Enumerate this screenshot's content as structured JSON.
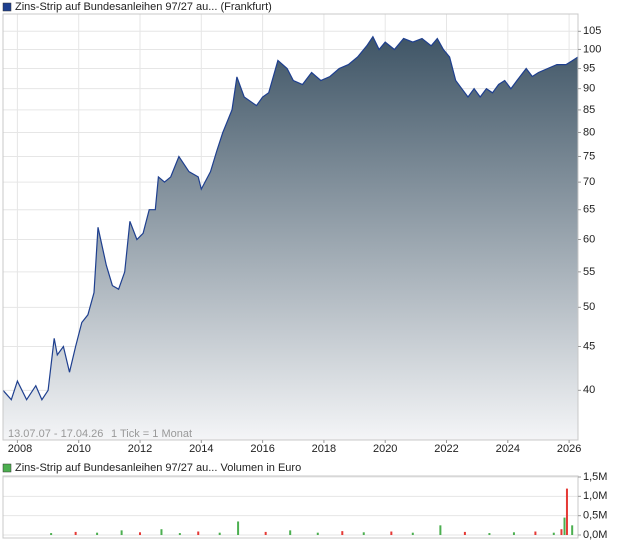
{
  "chart_data": [
    {
      "type": "area",
      "date_range": "13.07.07 - 17.04.26",
      "tick_note": "1 Tick = 1 Monat",
      "x": [
        2007.53,
        2007.8,
        2008.0,
        2008.3,
        2008.6,
        2008.8,
        2009.0,
        2009.2,
        2009.3,
        2009.5,
        2009.7,
        2009.9,
        2010.1,
        2010.3,
        2010.5,
        2010.63,
        2010.9,
        2011.1,
        2011.3,
        2011.5,
        2011.67,
        2011.9,
        2012.1,
        2012.3,
        2012.5,
        2012.6,
        2012.8,
        2013.0,
        2013.27,
        2013.6,
        2013.9,
        2014.0,
        2014.3,
        2014.5,
        2014.7,
        2015.0,
        2015.16,
        2015.4,
        2015.8,
        2016.0,
        2016.2,
        2016.5,
        2016.8,
        2017.0,
        2017.3,
        2017.6,
        2017.9,
        2018.2,
        2018.5,
        2018.8,
        2019.1,
        2019.4,
        2019.6,
        2019.8,
        2020.0,
        2020.3,
        2020.6,
        2020.9,
        2021.2,
        2021.5,
        2021.7,
        2021.9,
        2022.1,
        2022.3,
        2022.5,
        2022.7,
        2022.9,
        2023.1,
        2023.3,
        2023.5,
        2023.7,
        2023.9,
        2024.1,
        2024.3,
        2024.6,
        2024.8,
        2025.0,
        2025.3,
        2025.6,
        2025.9,
        2026.1,
        2026.29
      ],
      "series": [
        {
          "name": "Zins-Strip auf Bundesanleihen 97/27 au... (Frankfurt)",
          "color": "#1e3f8f",
          "values": [
            40,
            39,
            41,
            39,
            40.5,
            39,
            40,
            46,
            44,
            45,
            42,
            45,
            48,
            49,
            52,
            62,
            56,
            53,
            52.5,
            55,
            63,
            60,
            61,
            65,
            65,
            71,
            70,
            71,
            75,
            72,
            71,
            68.7,
            72,
            76,
            80,
            85,
            92.9,
            88,
            86,
            88,
            89,
            97.1,
            95,
            92,
            91,
            94,
            92,
            93,
            95,
            96,
            98,
            101,
            103.5,
            100,
            102,
            100,
            103,
            102,
            103,
            101,
            103,
            100,
            98,
            92,
            90,
            88,
            90,
            88,
            90,
            89,
            91,
            92,
            90,
            92,
            95,
            93,
            94,
            95,
            96,
            96,
            97,
            98
          ]
        }
      ],
      "xlim": [
        2007.53,
        2026.29
      ],
      "xticks": [
        2008,
        2010,
        2012,
        2014,
        2016,
        2018,
        2020,
        2022,
        2024,
        2026
      ],
      "ylim": [
        35,
        110
      ],
      "yticks": [
        40,
        45,
        50,
        55,
        60,
        65,
        70,
        75,
        80,
        85,
        90,
        95,
        100,
        105
      ],
      "log_scale": true,
      "grid": true
    },
    {
      "type": "bar",
      "x": [
        2009.1,
        2009.9,
        2010.6,
        2011.4,
        2012.0,
        2012.7,
        2013.3,
        2013.9,
        2014.6,
        2015.2,
        2016.1,
        2016.9,
        2017.8,
        2018.6,
        2019.3,
        2020.2,
        2020.9,
        2021.8,
        2022.6,
        2023.4,
        2024.2,
        2024.9,
        2025.5,
        2025.75,
        2025.85,
        2025.93,
        2026.1
      ],
      "series": [
        {
          "name": "Zins-Strip auf Bundesanleihen 97/27 au... Volumen in Euro",
          "color": "#4caf50",
          "colors": [
            "#4caf50",
            "#e53935",
            "#4caf50",
            "#4caf50",
            "#e53935",
            "#4caf50",
            "#4caf50",
            "#e53935",
            "#4caf50",
            "#4caf50",
            "#e53935",
            "#4caf50",
            "#4caf50",
            "#e53935",
            "#4caf50",
            "#e53935",
            "#4caf50",
            "#4caf50",
            "#e53935",
            "#4caf50",
            "#4caf50",
            "#e53935",
            "#4caf50",
            "#e53935",
            "#4caf50",
            "#e53935",
            "#4caf50"
          ],
          "values": [
            50000,
            80000,
            60000,
            120000,
            70000,
            150000,
            50000,
            90000,
            60000,
            350000,
            80000,
            120000,
            60000,
            100000,
            70000,
            90000,
            60000,
            250000,
            80000,
            50000,
            70000,
            90000,
            60000,
            150000,
            450000,
            1200000,
            250000
          ]
        }
      ],
      "xlim": [
        2007.53,
        2026.29
      ],
      "ylim": [
        0,
        1500000
      ],
      "yticks": [
        {
          "value": 0,
          "label": "0,0M"
        },
        {
          "value": 500000,
          "label": "0,5M"
        },
        {
          "value": 1000000,
          "label": "1,0M"
        },
        {
          "value": 1500000,
          "label": "1,5M"
        }
      ],
      "grid": true
    }
  ]
}
